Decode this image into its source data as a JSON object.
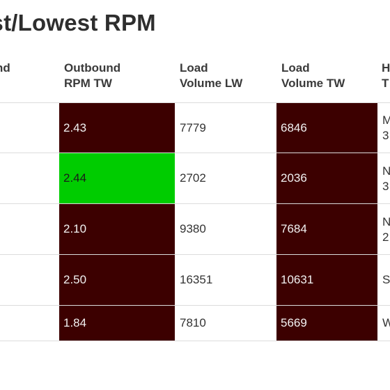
{
  "title": "est/Lowest RPM",
  "headers": {
    "left_partial": "nd",
    "outbound_rpm_tw": [
      "Outbound",
      "RPM TW"
    ],
    "load_volume_lw": [
      "Load",
      "Volume LW"
    ],
    "load_volume_tw": [
      "Load",
      "Volume TW"
    ],
    "right_partial": [
      "H",
      "T"
    ]
  },
  "colors": {
    "dark": "#3c0000",
    "green": "#00cc00",
    "divider": "#dcdcdc"
  },
  "rows": [
    {
      "rpm_tw": "2.43",
      "rpm_color": "dark",
      "vol_lw": "7779",
      "vol_tw": "6846",
      "vol_tw_color": "dark",
      "right": [
        "M",
        "3"
      ]
    },
    {
      "rpm_tw": "2.44",
      "rpm_color": "green",
      "vol_lw": "2702",
      "vol_tw": "2036",
      "vol_tw_color": "dark",
      "right": [
        "N",
        "3"
      ]
    },
    {
      "rpm_tw": "2.10",
      "rpm_color": "dark",
      "vol_lw": "9380",
      "vol_tw": "7684",
      "vol_tw_color": "dark",
      "right": [
        "N",
        "2"
      ]
    },
    {
      "rpm_tw": "2.50",
      "rpm_color": "dark",
      "vol_lw": "16351",
      "vol_tw": "10631",
      "vol_tw_color": "dark",
      "right": [
        "S",
        ""
      ]
    },
    {
      "rpm_tw": "1.84",
      "rpm_color": "dark",
      "vol_lw": "7810",
      "vol_tw": "5669",
      "vol_tw_color": "dark",
      "right": [
        "W",
        ""
      ]
    }
  ]
}
